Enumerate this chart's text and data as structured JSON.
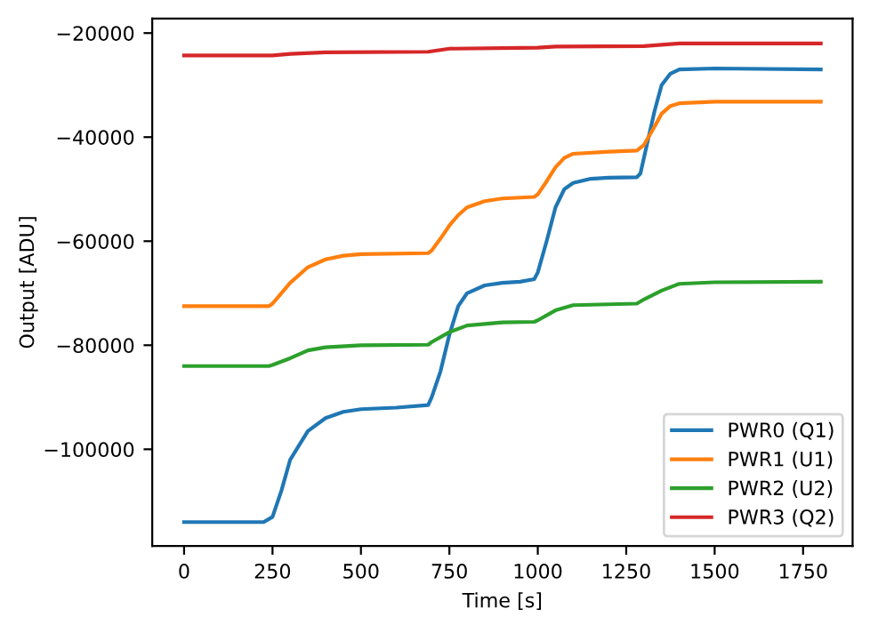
{
  "chart_data": {
    "type": "line",
    "xlabel": "Time [s]",
    "ylabel": "Output [ADU]",
    "xlim": [
      -90,
      1890
    ],
    "ylim": [
      -118600,
      -17200
    ],
    "xticks": [
      0,
      250,
      500,
      750,
      1000,
      1250,
      1500,
      1750
    ],
    "yticks": [
      -100000,
      -80000,
      -60000,
      -40000,
      -20000
    ],
    "legend": "bottom right",
    "grid": false,
    "series": [
      {
        "name": "PWR0 (Q1)",
        "color": "#1f77b4",
        "x": [
          0,
          225,
          250,
          275,
          300,
          350,
          400,
          450,
          500,
          600,
          690,
          700,
          725,
          750,
          775,
          800,
          850,
          900,
          950,
          990,
          1000,
          1025,
          1050,
          1075,
          1100,
          1150,
          1200,
          1280,
          1290,
          1310,
          1330,
          1350,
          1375,
          1400,
          1500,
          1800
        ],
        "values": [
          -114000,
          -114000,
          -113000,
          -108000,
          -102000,
          -96500,
          -94000,
          -92800,
          -92300,
          -92000,
          -91500,
          -90000,
          -85000,
          -78000,
          -72500,
          -70000,
          -68500,
          -68000,
          -67800,
          -67300,
          -66000,
          -60000,
          -53500,
          -50000,
          -48800,
          -48000,
          -47800,
          -47700,
          -47000,
          -41000,
          -35000,
          -30000,
          -27800,
          -27000,
          -26800,
          -27000
        ]
      },
      {
        "name": "PWR1 (U1)",
        "color": "#ff7f0e",
        "x": [
          0,
          240,
          250,
          275,
          300,
          350,
          400,
          450,
          500,
          690,
          700,
          725,
          750,
          775,
          800,
          850,
          900,
          990,
          1000,
          1025,
          1050,
          1075,
          1100,
          1200,
          1280,
          1300,
          1330,
          1350,
          1375,
          1400,
          1500,
          1800
        ],
        "values": [
          -72500,
          -72500,
          -72000,
          -70000,
          -68000,
          -65000,
          -63500,
          -62800,
          -62500,
          -62300,
          -61800,
          -59500,
          -57000,
          -55000,
          -53500,
          -52300,
          -51800,
          -51500,
          -51000,
          -48500,
          -45800,
          -44000,
          -43200,
          -42800,
          -42600,
          -41500,
          -38000,
          -35500,
          -34000,
          -33500,
          -33200,
          -33200
        ]
      },
      {
        "name": "PWR2 (U2)",
        "color": "#2ca02c",
        "x": [
          0,
          240,
          250,
          300,
          350,
          400,
          500,
          690,
          700,
          750,
          800,
          900,
          990,
          1000,
          1050,
          1100,
          1280,
          1300,
          1350,
          1400,
          1500,
          1800
        ],
        "values": [
          -84000,
          -84000,
          -83800,
          -82500,
          -81000,
          -80400,
          -80000,
          -79900,
          -79400,
          -77500,
          -76200,
          -75600,
          -75500,
          -75200,
          -73300,
          -72300,
          -72000,
          -71200,
          -69500,
          -68200,
          -67900,
          -67800
        ]
      },
      {
        "name": "PWR3 (Q2)",
        "color": "#d62728",
        "x": [
          0,
          250,
          300,
          400,
          690,
          750,
          1000,
          1050,
          1300,
          1400,
          1800
        ],
        "values": [
          -24300,
          -24300,
          -24000,
          -23700,
          -23600,
          -23000,
          -22800,
          -22600,
          -22500,
          -22000,
          -22000
        ]
      }
    ]
  }
}
